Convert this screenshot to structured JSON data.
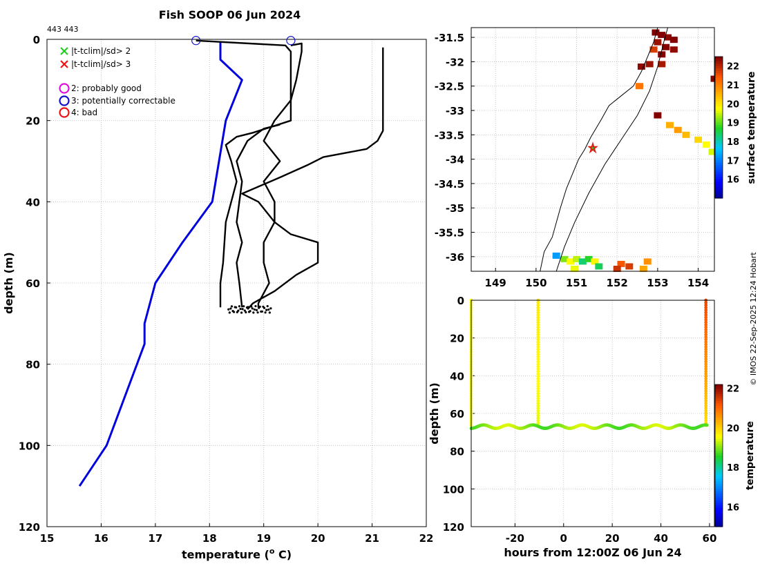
{
  "chart_data": [
    {
      "type": "line",
      "id": "profile",
      "title": "Fish SOOP 06 Jun 2024",
      "subtitle": "443 443",
      "xlabel": "temperature (",
      "xlabel_sup": "o",
      "xlabel_end": " C)",
      "ylabel": "depth (m)",
      "xlim": [
        15,
        22
      ],
      "ylim": [
        0,
        120
      ],
      "xticks": [
        15,
        16,
        17,
        18,
        19,
        20,
        21,
        22
      ],
      "yticks": [
        0,
        20,
        40,
        60,
        80,
        100,
        120
      ],
      "legend": [
        {
          "label": "|t-tclim|/sd> 2",
          "marker": "x",
          "color": "#22cc22"
        },
        {
          "label": "|t-tclim|/sd> 3",
          "marker": "x",
          "color": "#ee1111"
        },
        {
          "label": "2: probably good",
          "marker": "o",
          "color": "#dd11dd"
        },
        {
          "label": "3: potentially correctable",
          "marker": "o",
          "color": "#1111cc"
        },
        {
          "label": "4: bad",
          "marker": "o",
          "color": "#ee1111"
        }
      ],
      "series": [
        {
          "name": "climatology",
          "color": "#0000dd",
          "points": [
            [
              18.2,
              0.5
            ],
            [
              18.2,
              5
            ],
            [
              18.6,
              10
            ],
            [
              18.3,
              20
            ],
            [
              18.05,
              40
            ],
            [
              17.5,
              50
            ],
            [
              17.0,
              60
            ],
            [
              16.8,
              70
            ],
            [
              16.8,
              75
            ],
            [
              16.1,
              100
            ],
            [
              15.6,
              110
            ]
          ]
        },
        {
          "name": "cast-1",
          "color": "#000000",
          "points": [
            [
              17.75,
              0.3
            ],
            [
              19.4,
              1.5
            ],
            [
              19.5,
              3
            ],
            [
              19.5,
              10
            ],
            [
              19.5,
              20
            ],
            [
              18.8,
              23
            ],
            [
              18.5,
              24
            ],
            [
              18.3,
              26
            ],
            [
              18.4,
              30
            ],
            [
              18.5,
              35
            ],
            [
              18.4,
              40
            ],
            [
              18.3,
              45
            ],
            [
              18.25,
              55
            ],
            [
              18.2,
              60
            ],
            [
              18.2,
              66
            ]
          ]
        },
        {
          "name": "cast-2",
          "color": "#000000",
          "points": [
            [
              19.5,
              1.5
            ],
            [
              19.7,
              1
            ],
            [
              19.7,
              3
            ],
            [
              19.6,
              10
            ],
            [
              19.5,
              15
            ],
            [
              19.2,
              20
            ],
            [
              19.0,
              25
            ],
            [
              19.3,
              30
            ],
            [
              19.0,
              35
            ],
            [
              19.2,
              40
            ],
            [
              19.2,
              45
            ],
            [
              19.0,
              50
            ],
            [
              19.0,
              55
            ],
            [
              19.1,
              60
            ],
            [
              18.9,
              65
            ],
            [
              18.9,
              66
            ]
          ]
        },
        {
          "name": "cast-3",
          "color": "#000000",
          "points": [
            [
              21.2,
              2
            ],
            [
              21.2,
              10
            ],
            [
              21.2,
              20
            ],
            [
              21.2,
              22.5
            ],
            [
              21.1,
              25
            ],
            [
              20.9,
              27
            ],
            [
              20.1,
              29
            ],
            [
              19.8,
              31
            ],
            [
              19.3,
              34
            ],
            [
              18.6,
              38
            ],
            [
              18.9,
              40
            ],
            [
              19.2,
              45
            ],
            [
              19.5,
              48
            ],
            [
              20.0,
              50
            ],
            [
              20.0,
              55
            ],
            [
              19.6,
              58
            ],
            [
              19.2,
              62
            ],
            [
              18.8,
              65
            ],
            [
              18.7,
              66.5
            ]
          ]
        },
        {
          "name": "cast-4",
          "color": "#000000",
          "points": [
            [
              18.6,
              66
            ],
            [
              18.55,
              60
            ],
            [
              18.5,
              55
            ],
            [
              18.6,
              50
            ],
            [
              18.5,
              45
            ],
            [
              18.55,
              40
            ],
            [
              18.6,
              35
            ],
            [
              18.5,
              30
            ],
            [
              18.7,
              25
            ],
            [
              19.0,
              22
            ],
            [
              19.3,
              21
            ]
          ]
        }
      ],
      "flags": [
        {
          "temp": 17.75,
          "depth": 0.3,
          "flag": "3"
        },
        {
          "temp": 19.5,
          "depth": 0.3,
          "flag": "3"
        }
      ]
    },
    {
      "type": "heatmap",
      "id": "sst-map",
      "title": "",
      "xlabel": "",
      "ylabel": "",
      "xlim": [
        148.4,
        154.4
      ],
      "ylim": [
        -36.3,
        -31.3
      ],
      "xticks": [
        149,
        150,
        151,
        152,
        153,
        154
      ],
      "xtick_labels": [
        "149",
        "150",
        "151",
        "152",
        "153",
        "154"
      ],
      "yticks": [
        -31.5,
        -32,
        -32.5,
        -33,
        -33.5,
        -34,
        -34.5,
        -35,
        -35.5,
        -36
      ],
      "ytick_labels": [
        "-31.5",
        "-32",
        "-32.5",
        "-33",
        "-33.5",
        "-34",
        "-34.5",
        "-35",
        "-35.5",
        "-36"
      ],
      "colorbar_label": "surface temperature",
      "colorbar_range": [
        15,
        22.5
      ],
      "colorbar_ticks": [
        16,
        17,
        18,
        19,
        20,
        21,
        22
      ],
      "cells": [
        {
          "lon": 152.95,
          "lat": -31.4,
          "t": 22.5
        },
        {
          "lon": 153.1,
          "lat": -31.45,
          "t": 22.5
        },
        {
          "lon": 153.25,
          "lat": -31.5,
          "t": 22.4
        },
        {
          "lon": 153.4,
          "lat": -31.55,
          "t": 22.5
        },
        {
          "lon": 153.0,
          "lat": -31.6,
          "t": 22.3
        },
        {
          "lon": 153.2,
          "lat": -31.7,
          "t": 22.5
        },
        {
          "lon": 153.4,
          "lat": -31.75,
          "t": 22.4
        },
        {
          "lon": 152.9,
          "lat": -31.75,
          "t": 21.8
        },
        {
          "lon": 153.1,
          "lat": -31.85,
          "t": 22.5
        },
        {
          "lon": 152.8,
          "lat": -32.05,
          "t": 22.3
        },
        {
          "lon": 152.6,
          "lat": -32.1,
          "t": 22.4
        },
        {
          "lon": 153.1,
          "lat": -32.05,
          "t": 22.2
        },
        {
          "lon": 152.55,
          "lat": -32.5,
          "t": 21.2
        },
        {
          "lon": 153.0,
          "lat": -33.1,
          "t": 22.5
        },
        {
          "lon": 154.4,
          "lat": -32.35,
          "t": 22.5
        },
        {
          "lon": 153.3,
          "lat": -33.3,
          "t": 20.6
        },
        {
          "lon": 153.5,
          "lat": -33.4,
          "t": 20.8
        },
        {
          "lon": 153.7,
          "lat": -33.5,
          "t": 20.5
        },
        {
          "lon": 154.0,
          "lat": -33.6,
          "t": 20.2
        },
        {
          "lon": 154.2,
          "lat": -33.7,
          "t": 19.8
        },
        {
          "lon": 154.35,
          "lat": -33.85,
          "t": 19.6
        },
        {
          "lon": 150.7,
          "lat": -36.05,
          "t": 19.2
        },
        {
          "lon": 150.85,
          "lat": -36.1,
          "t": 19.8
        },
        {
          "lon": 151.0,
          "lat": -36.05,
          "t": 19.5
        },
        {
          "lon": 151.15,
          "lat": -36.1,
          "t": 18.4
        },
        {
          "lon": 151.3,
          "lat": -36.05,
          "t": 18.8
        },
        {
          "lon": 151.45,
          "lat": -36.1,
          "t": 19.9
        },
        {
          "lon": 151.55,
          "lat": -36.2,
          "t": 18.5
        },
        {
          "lon": 150.95,
          "lat": -36.25,
          "t": 19.7
        },
        {
          "lon": 150.5,
          "lat": -35.98,
          "t": 17.3
        },
        {
          "lon": 152.1,
          "lat": -36.15,
          "t": 21.5
        },
        {
          "lon": 152.3,
          "lat": -36.2,
          "t": 21.8
        },
        {
          "lon": 152.0,
          "lat": -36.25,
          "t": 21.9
        },
        {
          "lon": 152.75,
          "lat": -36.1,
          "t": 20.9
        },
        {
          "lon": 152.65,
          "lat": -36.25,
          "t": 20.7
        }
      ],
      "station": {
        "lon": 151.4,
        "lat": -33.77
      }
    },
    {
      "type": "scatter",
      "id": "timeseries",
      "xlabel": "hours from 12:00Z 06 Jun 24",
      "ylabel": "depth (m)",
      "xlim": [
        -38,
        62
      ],
      "ylim": [
        0,
        120
      ],
      "xticks": [
        -20,
        0,
        20,
        40,
        60
      ],
      "yticks": [
        0,
        20,
        40,
        60,
        80,
        100,
        120
      ],
      "colorbar_label": "temperature",
      "colorbar_range": [
        15,
        22.2
      ],
      "colorbar_ticks": [
        16,
        18,
        20,
        22
      ],
      "profiles": [
        {
          "hour": -38,
          "top_temp": 19.6,
          "bottom_temp": 19.6
        },
        {
          "hour": -10.5,
          "top_temp": 19.8,
          "bottom_temp": 19.5
        },
        {
          "hour": 58.5,
          "top_temp": 21.4,
          "bottom_temp": 19.9
        }
      ],
      "bottom_depth": 67,
      "bottom_temp": 19.1
    }
  ],
  "credit": "© IMOS 22-Sep-2025 12:24 Hobart"
}
